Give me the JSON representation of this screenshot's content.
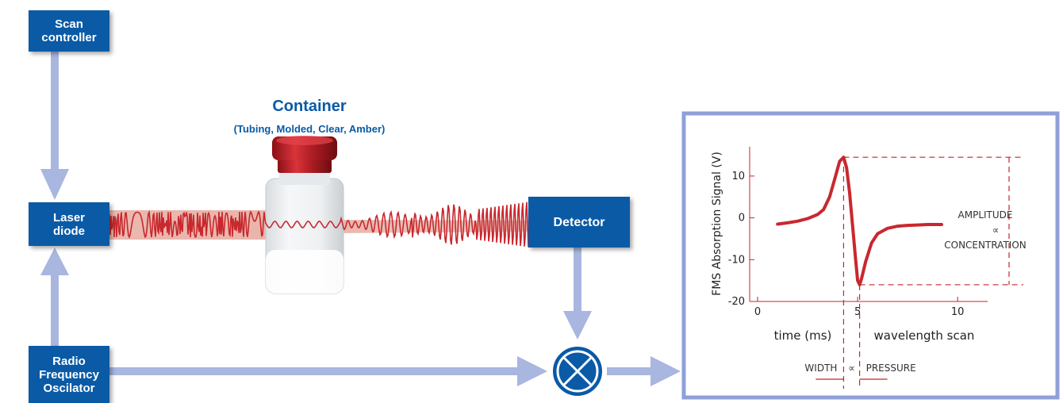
{
  "boxes": {
    "scan_controller": [
      "Scan",
      "controller"
    ],
    "laser_diode": [
      "Laser",
      "diode"
    ],
    "radio_oscillator": [
      "Radio",
      "Frequency",
      "Oscilator"
    ],
    "detector": "Detector"
  },
  "container": {
    "title": "Container",
    "subtitle": "(Tubing, Molded, Clear, Amber)"
  },
  "colors": {
    "box_blue": "#0a5aa6",
    "arrow_blue": "#a8b6e0",
    "signal_red": "#c8282e",
    "dashed_red": "#c0272d",
    "panel_border": "#8fa0d8"
  },
  "mixer_icon": "multiply-circle-icon",
  "chart_data": {
    "type": "line",
    "ylabel": "FMS Absorption Signal (V)",
    "xlabel_left": "time (ms)",
    "xlabel_right": "wavelength scan",
    "x_ticks": [
      0,
      5,
      10
    ],
    "y_ticks": [
      10,
      0,
      -10,
      -20
    ],
    "xlim": [
      0,
      11.5
    ],
    "ylim": [
      -20,
      17
    ],
    "series": [
      {
        "x": [
          1.0,
          1.5,
          2.0,
          2.5,
          3.0,
          3.3,
          3.6,
          3.9,
          4.1,
          4.3,
          4.45,
          4.6,
          4.75,
          4.9,
          5.0,
          5.1,
          5.2,
          5.4,
          5.7,
          6.0,
          6.5,
          7.0,
          7.5,
          8.0,
          8.5,
          9.2
        ],
        "y": [
          -1.5,
          -1.2,
          -0.8,
          -0.2,
          0.8,
          2.0,
          5.0,
          10.0,
          13.5,
          14.5,
          12.0,
          6.0,
          -2.0,
          -10.0,
          -15.0,
          -16.0,
          -14.5,
          -10.5,
          -6.0,
          -3.8,
          -2.5,
          -2.0,
          -1.8,
          -1.7,
          -1.6,
          -1.6
        ]
      }
    ],
    "annotations": {
      "amplitude": "AMPLITUDE",
      "proportional": "∝",
      "concentration": "CONCENTRATION",
      "width": "WIDTH",
      "pressure": "PRESSURE"
    }
  }
}
